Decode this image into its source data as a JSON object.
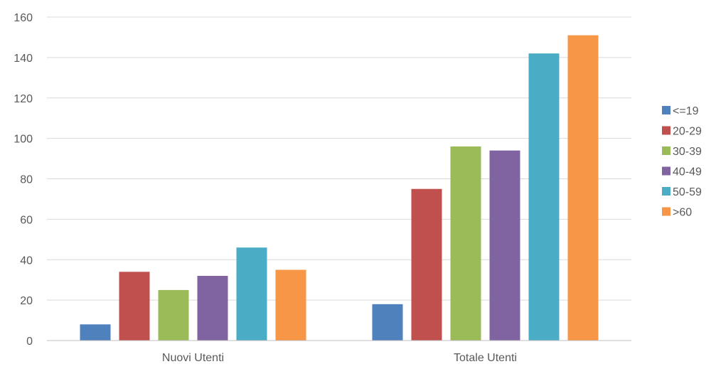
{
  "chart_data": {
    "type": "bar",
    "title": "",
    "xlabel": "",
    "ylabel": "",
    "categories": [
      "Nuovi Utenti",
      "Totale Utenti"
    ],
    "ylim": [
      0,
      160
    ],
    "yticks": [
      "0",
      "20",
      "40",
      "60",
      "80",
      "100",
      "120",
      "140",
      "160"
    ],
    "grid": true,
    "legend_position": "right",
    "series": [
      {
        "name": "<=19",
        "color": "#4F81BD",
        "values": [
          8,
          18
        ]
      },
      {
        "name": "20-29",
        "color": "#C0504D",
        "values": [
          34,
          75
        ]
      },
      {
        "name": "30-39",
        "color": "#9BBB59",
        "values": [
          25,
          96
        ]
      },
      {
        "name": "40-49",
        "color": "#8064A2",
        "values": [
          32,
          94
        ]
      },
      {
        "name": "50-59",
        "color": "#4BACC6",
        "values": [
          46,
          142
        ]
      },
      {
        "name": ">60",
        "color": "#F79646",
        "values": [
          35,
          151
        ]
      }
    ]
  }
}
